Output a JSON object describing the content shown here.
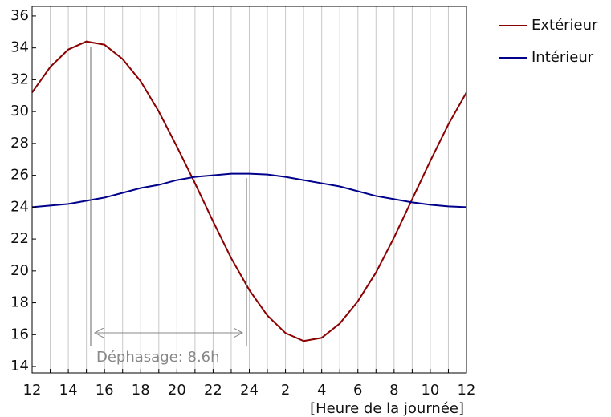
{
  "chart_data": {
    "type": "line",
    "x_label": "[Heure de la journée]",
    "categories": [
      "12",
      null,
      "14",
      null,
      "16",
      null,
      "18",
      null,
      "20",
      null,
      "22",
      null,
      "24",
      null,
      "2",
      null,
      "4",
      null,
      "6",
      null,
      "8",
      null,
      "10",
      null,
      "12"
    ],
    "series": [
      {
        "name": "Extérieur",
        "color": "#8b0000",
        "values": [
          31.2,
          32.8,
          33.9,
          34.4,
          34.2,
          33.3,
          31.9,
          30.0,
          27.8,
          25.5,
          23.1,
          20.8,
          18.8,
          17.2,
          16.1,
          15.6,
          15.8,
          16.7,
          18.1,
          19.9,
          22.1,
          24.5,
          26.9,
          29.2,
          31.2
        ]
      },
      {
        "name": "Intérieur",
        "color": "#00008b",
        "values": [
          24.0,
          24.1,
          24.2,
          24.4,
          24.6,
          24.9,
          25.2,
          25.4,
          25.7,
          25.9,
          26.0,
          26.1,
          26.1,
          26.05,
          25.9,
          25.7,
          25.5,
          25.3,
          25.0,
          24.7,
          24.5,
          24.3,
          24.15,
          24.05,
          24.0
        ]
      }
    ],
    "ylim": [
      13.6,
      36.6
    ],
    "yticks": [
      14,
      16,
      18,
      20,
      22,
      24,
      26,
      28,
      30,
      32,
      34,
      36
    ],
    "annotation": "Déphasage: 8.6h",
    "legend": "right"
  }
}
